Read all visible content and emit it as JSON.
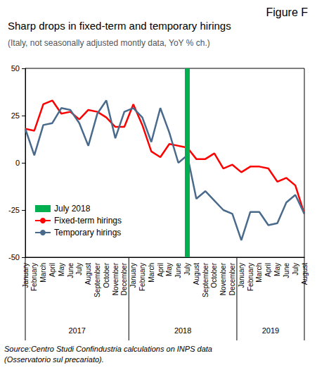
{
  "chart_data": {
    "type": "line",
    "figure_label": "Figure F",
    "title": "Sharp drops in fixed-term and temporary hirings",
    "subtitle": "(Italy, not seasonally adjusted montly data, YoY % ch.)",
    "source": "Source:Centro Studi Confindustria calculations on INPS data (Osservatorio sul precariato).",
    "categories": [
      "January",
      "February",
      "March",
      "April",
      "May",
      "June",
      "July",
      "August",
      "September",
      "October",
      "November",
      "December",
      "January",
      "February",
      "March",
      "April",
      "May",
      "June",
      "July",
      "August",
      "September",
      "October",
      "November",
      "December",
      "January",
      "February",
      "March",
      "April",
      "May",
      "June",
      "July",
      "August"
    ],
    "years": [
      "2017",
      "2017",
      "2017",
      "2017",
      "2017",
      "2017",
      "2017",
      "2017",
      "2017",
      "2017",
      "2017",
      "2017",
      "2018",
      "2018",
      "2018",
      "2018",
      "2018",
      "2018",
      "2018",
      "2018",
      "2018",
      "2018",
      "2018",
      "2018",
      "2019",
      "2019",
      "2019",
      "2019",
      "2019",
      "2019",
      "2019",
      "2019"
    ],
    "series": [
      {
        "name": "Fixed-term hirings",
        "color": "#ff0000",
        "values": [
          18,
          17,
          31,
          33,
          26,
          27,
          23,
          28,
          27,
          24,
          19,
          19,
          31,
          20,
          6,
          3,
          10,
          9,
          8,
          2,
          2,
          5,
          -3,
          -1,
          -5,
          -2,
          -2,
          -3,
          -10,
          -8,
          -12,
          -27
        ]
      },
      {
        "name": "Temporary hirings",
        "color": "#4a6a8c",
        "values": [
          18,
          4,
          20,
          21,
          29,
          28,
          21,
          9,
          26,
          33,
          13,
          27,
          29,
          24,
          11,
          29,
          16,
          0,
          4,
          -19,
          -15,
          -20,
          -25,
          -27,
          -41,
          -26,
          -26,
          -33,
          -32,
          -21,
          -17,
          -27
        ]
      }
    ],
    "highlight": {
      "name": "July 2018",
      "index": 18,
      "color": "#00b050"
    },
    "ylim": [
      -50,
      50
    ],
    "yticks": [
      -50,
      -25,
      0,
      25,
      50
    ],
    "grid": false,
    "legend": "lower left"
  }
}
